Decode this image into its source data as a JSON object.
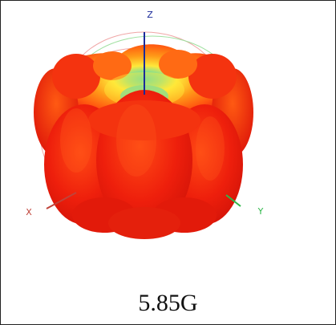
{
  "axes": {
    "z": {
      "label": "Z",
      "color": "#1a2a9a"
    },
    "x": {
      "label": "X",
      "color": "#c0443a"
    },
    "y": {
      "label": "Y",
      "color": "#2fb84a"
    }
  },
  "caption": "5.85G",
  "colors": {
    "outer": "#f0220e",
    "mid": "#ff7a12",
    "inner": "#ffe83a",
    "core": "#38d6c8",
    "wire_red": "#f0a6a6",
    "wire_green": "#9ee09e"
  }
}
